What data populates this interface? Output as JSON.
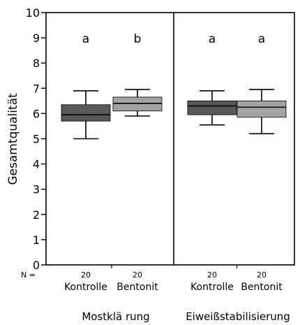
{
  "chart_data": {
    "type": "boxplot",
    "ylabel": "Gesamtqualität",
    "ylim": [
      0,
      10
    ],
    "yticks": [
      0,
      1,
      2,
      3,
      4,
      5,
      6,
      7,
      8,
      9,
      10
    ],
    "n_label": "N =",
    "groups": [
      {
        "name": "Mostklä rung",
        "boxes": [
          {
            "category": "Kontrolle",
            "n": "20",
            "letter": "a",
            "min": 5.0,
            "q1": 5.7,
            "median": 5.95,
            "q3": 6.35,
            "max": 6.9,
            "color": "#595959"
          },
          {
            "category": "Bentonit",
            "n": "20",
            "letter": "b",
            "min": 5.9,
            "q1": 6.1,
            "median": 6.4,
            "q3": 6.65,
            "max": 6.95,
            "color": "#a3a3a3"
          }
        ]
      },
      {
        "name": "Eiweißstabilisierung",
        "boxes": [
          {
            "category": "Kontrolle",
            "n": "20",
            "letter": "a",
            "min": 5.55,
            "q1": 5.95,
            "median": 6.3,
            "q3": 6.5,
            "max": 6.9,
            "color": "#595959"
          },
          {
            "category": "Bentonit",
            "n": "20",
            "letter": "a",
            "min": 5.2,
            "q1": 5.85,
            "median": 6.25,
            "q3": 6.5,
            "max": 6.95,
            "color": "#a3a3a3"
          }
        ]
      }
    ]
  }
}
